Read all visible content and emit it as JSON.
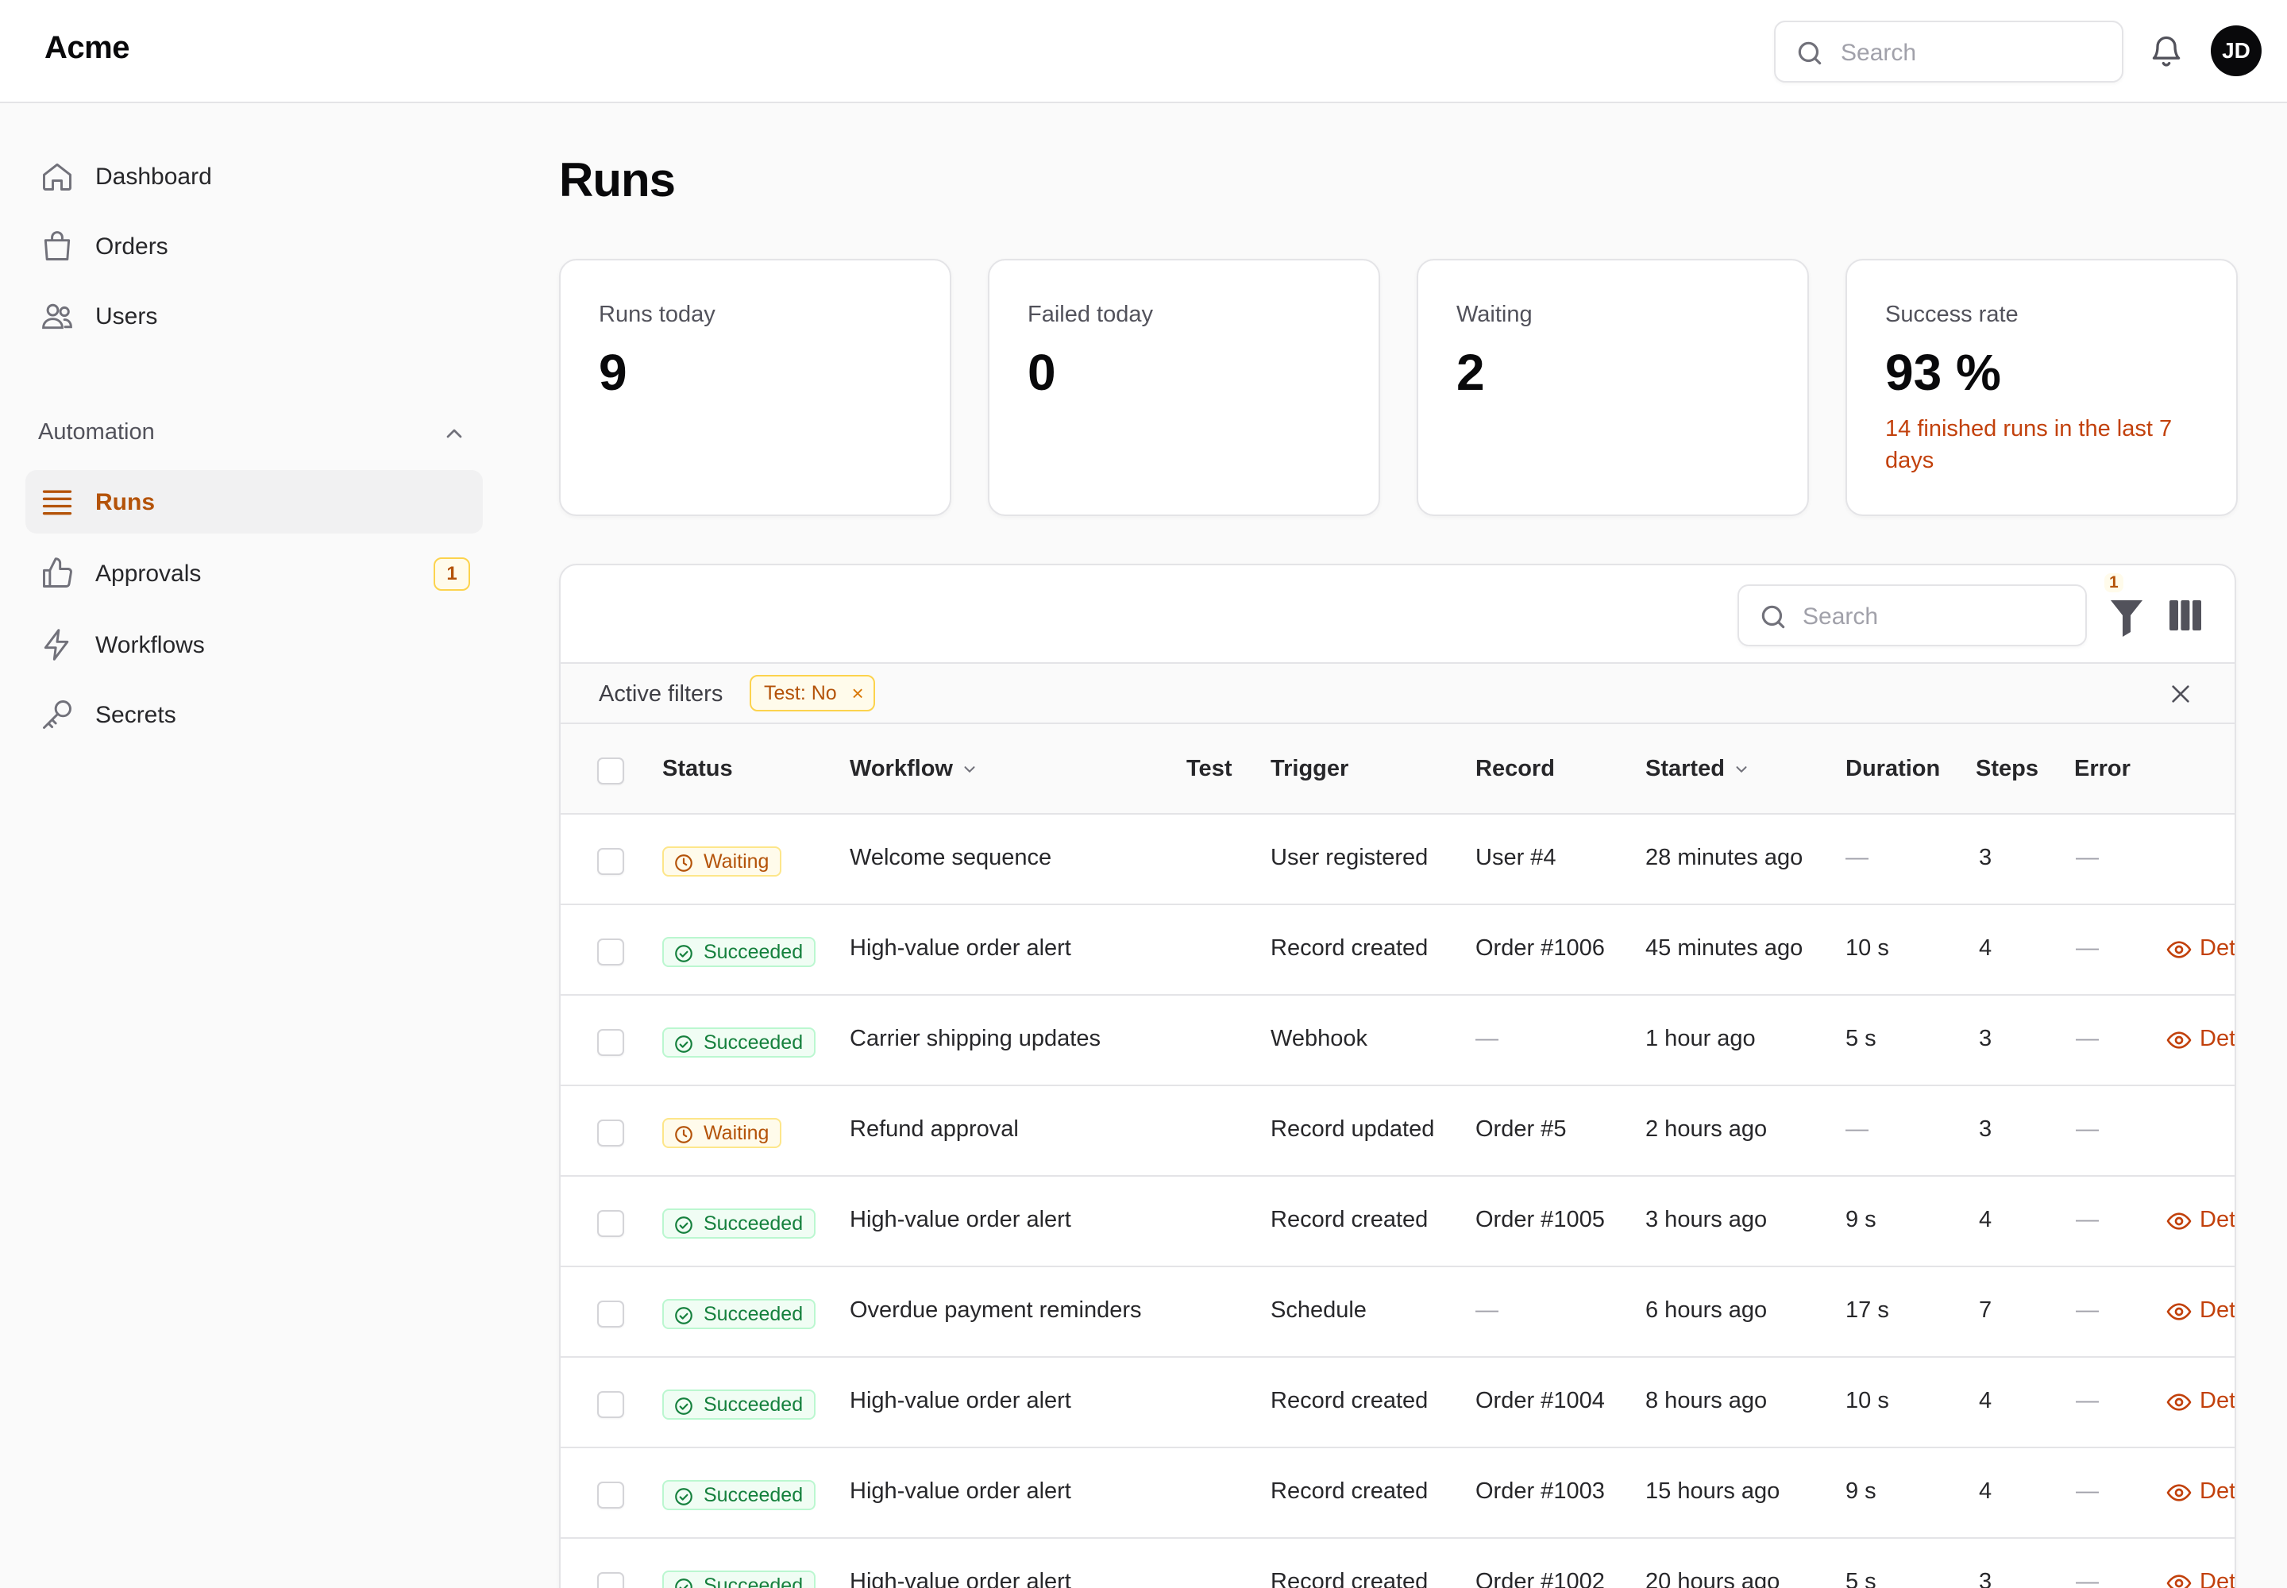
{
  "app": {
    "brand": "Acme"
  },
  "topbar": {
    "search_placeholder": "Search",
    "avatar_initials": "JD"
  },
  "sidebar": {
    "items": [
      {
        "label": "Dashboard",
        "icon": "home-icon"
      },
      {
        "label": "Orders",
        "icon": "shopping-bag-icon"
      },
      {
        "label": "Users",
        "icon": "users-icon"
      }
    ],
    "group": {
      "label": "Automation",
      "items": [
        {
          "label": "Runs",
          "icon": "list-icon",
          "active": true
        },
        {
          "label": "Approvals",
          "icon": "thumbs-up-icon",
          "badge": "1"
        },
        {
          "label": "Workflows",
          "icon": "bolt-icon"
        },
        {
          "label": "Secrets",
          "icon": "key-icon"
        }
      ]
    }
  },
  "page": {
    "title": "Runs"
  },
  "stats": [
    {
      "label": "Runs today",
      "value": "9"
    },
    {
      "label": "Failed today",
      "value": "0"
    },
    {
      "label": "Waiting",
      "value": "2"
    },
    {
      "label": "Success rate",
      "value": "93 %",
      "note": "14 finished runs in the last 7 days"
    }
  ],
  "table": {
    "search_placeholder": "Search",
    "filter_count": "1",
    "active_filters_label": "Active filters",
    "filters": [
      {
        "label": "Test: No",
        "remove": "×"
      }
    ],
    "columns": {
      "status": "Status",
      "workflow": "Workflow",
      "test": "Test",
      "trigger": "Trigger",
      "record": "Record",
      "started": "Started",
      "duration": "Duration",
      "steps": "Steps",
      "error": "Error"
    },
    "details_label": "Details",
    "rows": [
      {
        "status": "Waiting",
        "workflow": "Welcome sequence",
        "trigger": "User registered",
        "record": "User #4",
        "started": "28 minutes ago",
        "duration": "—",
        "steps": "3",
        "error": "—"
      },
      {
        "status": "Succeeded",
        "workflow": "High-value order alert",
        "trigger": "Record created",
        "record": "Order #1006",
        "started": "45 minutes ago",
        "duration": "10 s",
        "steps": "4",
        "error": "—",
        "details": true
      },
      {
        "status": "Succeeded",
        "workflow": "Carrier shipping updates",
        "trigger": "Webhook",
        "record": "—",
        "started": "1 hour ago",
        "duration": "5 s",
        "steps": "3",
        "error": "—",
        "details": true
      },
      {
        "status": "Waiting",
        "workflow": "Refund approval",
        "trigger": "Record updated",
        "record": "Order #5",
        "started": "2 hours ago",
        "duration": "—",
        "steps": "3",
        "error": "—"
      },
      {
        "status": "Succeeded",
        "workflow": "High-value order alert",
        "trigger": "Record created",
        "record": "Order #1005",
        "started": "3 hours ago",
        "duration": "9 s",
        "steps": "4",
        "error": "—",
        "details": true
      },
      {
        "status": "Succeeded",
        "workflow": "Overdue payment reminders",
        "trigger": "Schedule",
        "record": "—",
        "started": "6 hours ago",
        "duration": "17 s",
        "steps": "7",
        "error": "—",
        "details": true
      },
      {
        "status": "Succeeded",
        "workflow": "High-value order alert",
        "trigger": "Record created",
        "record": "Order #1004",
        "started": "8 hours ago",
        "duration": "10 s",
        "steps": "4",
        "error": "—",
        "details": true
      },
      {
        "status": "Succeeded",
        "workflow": "High-value order alert",
        "trigger": "Record created",
        "record": "Order #1003",
        "started": "15 hours ago",
        "duration": "9 s",
        "steps": "4",
        "error": "—",
        "details": true
      },
      {
        "status": "Succeeded",
        "workflow": "High-value order alert",
        "trigger": "Record created",
        "record": "Order #1002",
        "started": "20 hours ago",
        "duration": "5 s",
        "steps": "3",
        "error": "—",
        "details": true
      }
    ]
  },
  "colors": {
    "accent": "#c2410c",
    "success": "#15803d",
    "warning": "#b45309",
    "border": "#e4e4e7"
  }
}
